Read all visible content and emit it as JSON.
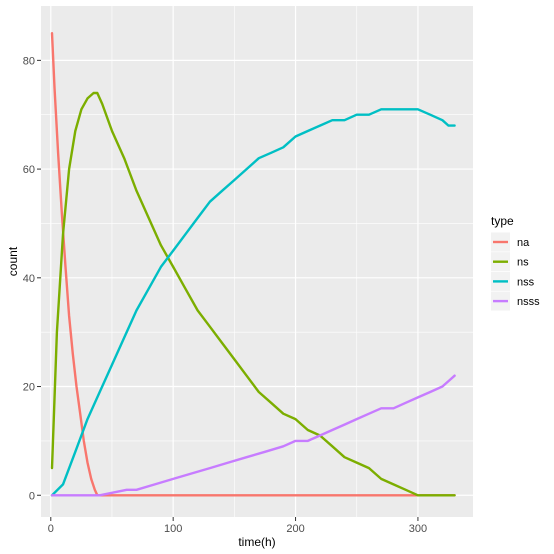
{
  "chart_data": {
    "type": "line",
    "xlabel": "time(h)",
    "ylabel": "count",
    "xlim": [
      -8,
      345
    ],
    "ylim": [
      -4,
      90
    ],
    "x_ticks": [
      0,
      100,
      200,
      300
    ],
    "y_ticks": [
      0,
      20,
      40,
      60,
      80
    ],
    "grid": true,
    "legend": {
      "title": "type",
      "position": "right"
    },
    "series": [
      {
        "name": "na",
        "color": "#F8766D",
        "x": [
          1,
          3,
          6,
          9,
          12,
          15,
          18,
          21,
          24,
          27,
          30,
          33,
          36,
          38,
          40,
          60,
          100,
          200,
          300,
          330
        ],
        "y": [
          85,
          75,
          63,
          52,
          42,
          33,
          26,
          20,
          15,
          10,
          6,
          3,
          1,
          0,
          0,
          0,
          0,
          0,
          0,
          0
        ]
      },
      {
        "name": "ns",
        "color": "#7CAE00",
        "x": [
          1,
          5,
          10,
          15,
          20,
          25,
          30,
          35,
          38,
          42,
          50,
          60,
          70,
          80,
          90,
          100,
          110,
          120,
          130,
          140,
          150,
          160,
          170,
          180,
          190,
          200,
          210,
          220,
          230,
          240,
          250,
          260,
          270,
          280,
          290,
          300,
          310,
          320,
          330
        ],
        "y": [
          5,
          30,
          48,
          60,
          67,
          71,
          73,
          74,
          74,
          72,
          67,
          62,
          56,
          51,
          46,
          42,
          38,
          34,
          31,
          28,
          25,
          22,
          19,
          17,
          15,
          14,
          12,
          11,
          9,
          7,
          6,
          5,
          3,
          2,
          1,
          0,
          0,
          0,
          0
        ]
      },
      {
        "name": "nss",
        "color": "#00BFC4",
        "x": [
          1,
          10,
          20,
          30,
          40,
          50,
          60,
          70,
          80,
          90,
          100,
          110,
          120,
          130,
          140,
          150,
          160,
          170,
          180,
          190,
          200,
          210,
          220,
          230,
          240,
          250,
          260,
          270,
          280,
          290,
          300,
          310,
          320,
          325,
          330
        ],
        "y": [
          0,
          2,
          8,
          14,
          19,
          24,
          29,
          34,
          38,
          42,
          45,
          48,
          51,
          54,
          56,
          58,
          60,
          62,
          63,
          64,
          66,
          67,
          68,
          69,
          69,
          70,
          70,
          71,
          71,
          71,
          71,
          70,
          69,
          68,
          68
        ]
      },
      {
        "name": "nsss",
        "color": "#C77CFF",
        "x": [
          1,
          20,
          40,
          62,
          70,
          85,
          100,
          115,
          130,
          145,
          160,
          175,
          190,
          200,
          210,
          220,
          230,
          240,
          250,
          260,
          270,
          280,
          290,
          300,
          310,
          320,
          325,
          330
        ],
        "y": [
          0,
          0,
          0,
          1,
          1,
          2,
          3,
          4,
          5,
          6,
          7,
          8,
          9,
          10,
          10,
          11,
          12,
          13,
          14,
          15,
          16,
          16,
          17,
          18,
          19,
          20,
          21,
          22
        ]
      }
    ]
  }
}
